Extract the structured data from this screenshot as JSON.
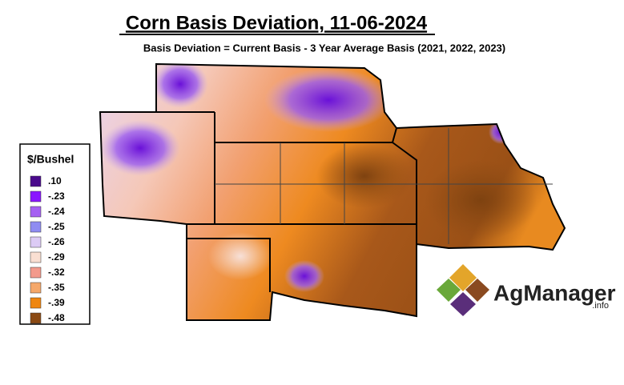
{
  "header": {
    "title": "Corn Basis Deviation, 11-06-2024",
    "subtitle": "Basis Deviation = Current Basis - 3 Year Average Basis (2021, 2022, 2023)"
  },
  "legend": {
    "title": "$/Bushel",
    "items": [
      {
        "label": ".10",
        "color": "#4a0a8c"
      },
      {
        "label": "-.23",
        "color": "#8a14ff"
      },
      {
        "label": "-.24",
        "color": "#a560f2"
      },
      {
        "label": "-.25",
        "color": "#8f8cf2"
      },
      {
        "label": "-.26",
        "color": "#dccbf5"
      },
      {
        "label": "-.29",
        "color": "#f9dfd2"
      },
      {
        "label": "-.32",
        "color": "#f39a8c"
      },
      {
        "label": "-.35",
        "color": "#f5a86a"
      },
      {
        "label": "-.39",
        "color": "#ef8610"
      },
      {
        "label": "-.48",
        "color": "#8b4a14"
      }
    ]
  },
  "logo": {
    "name": "AgManager",
    "suffix": ".info"
  }
}
